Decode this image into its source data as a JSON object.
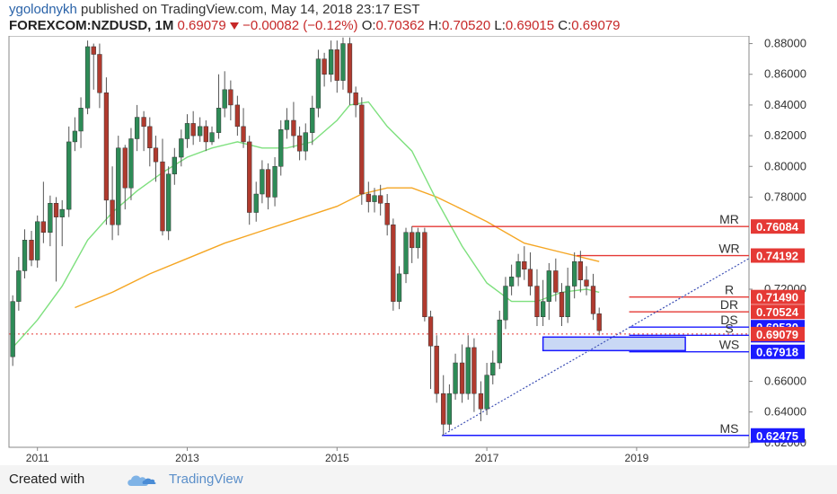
{
  "header": {
    "author": "ygolodnykh",
    "published_text": " published on TradingView.com, May 14, 2018 23:17 EST",
    "symbol": "FOREXCOM:NZDUSD, 1M",
    "last": "0.69079",
    "change": "−0.00082 (−0.12%)",
    "o_label": "O:",
    "o_value": "0.70362",
    "h_label": "H:",
    "h_value": "0.70520",
    "l_label": "L:",
    "l_value": "0.69015",
    "c_label": "C:",
    "c_value": "0.69079",
    "down_arrow_color": "#c62828"
  },
  "footer": {
    "created_with": "Created with",
    "brand": "TradingView",
    "logo_icon": "tradingview-cloud-icon"
  },
  "colors": {
    "up_candle": "#2e8b57",
    "down_candle": "#b03a2e",
    "wick": "#555555",
    "ma_short": "#7ee07e",
    "ma_long": "#f5a623",
    "resistance": "#e53935",
    "support": "#1a1aff",
    "support_box_fill": "#c9d8f5",
    "trendline": "#3f51b5"
  },
  "chart_data": {
    "type": "candlestick",
    "title": "",
    "y_axis_ticks": [
      "0.88000",
      "0.86000",
      "0.84000",
      "0.82000",
      "0.80000",
      "0.78000",
      "0.72000",
      "0.66000",
      "0.64000",
      "0.62000"
    ],
    "x_axis_ticks": [
      "2011",
      "2013",
      "2015",
      "2017",
      "2019"
    ],
    "ylim": [
      0.617,
      0.885
    ],
    "xlim": [
      2010.62,
      2020.5
    ],
    "candles": [
      {
        "t": 2010.67,
        "o": 0.676,
        "c": 0.712,
        "h": 0.716,
        "l": 0.67
      },
      {
        "t": 2010.75,
        "o": 0.712,
        "c": 0.732,
        "h": 0.741,
        "l": 0.706
      },
      {
        "t": 2010.83,
        "o": 0.732,
        "c": 0.752,
        "h": 0.759,
        "l": 0.727
      },
      {
        "t": 2010.92,
        "o": 0.752,
        "c": 0.739,
        "h": 0.758,
        "l": 0.735
      },
      {
        "t": 2011.0,
        "o": 0.739,
        "c": 0.764,
        "h": 0.768,
        "l": 0.734
      },
      {
        "t": 2011.08,
        "o": 0.764,
        "c": 0.757,
        "h": 0.79,
        "l": 0.75
      },
      {
        "t": 2011.17,
        "o": 0.757,
        "c": 0.776,
        "h": 0.781,
        "l": 0.748
      },
      {
        "t": 2011.25,
        "o": 0.776,
        "c": 0.767,
        "h": 0.78,
        "l": 0.725
      },
      {
        "t": 2011.33,
        "o": 0.767,
        "c": 0.772,
        "h": 0.778,
        "l": 0.748
      },
      {
        "t": 2011.42,
        "o": 0.772,
        "c": 0.816,
        "h": 0.826,
        "l": 0.767
      },
      {
        "t": 2011.5,
        "o": 0.816,
        "c": 0.823,
        "h": 0.832,
        "l": 0.81
      },
      {
        "t": 2011.58,
        "o": 0.823,
        "c": 0.838,
        "h": 0.845,
        "l": 0.812
      },
      {
        "t": 2011.67,
        "o": 0.838,
        "c": 0.878,
        "h": 0.882,
        "l": 0.834
      },
      {
        "t": 2011.75,
        "o": 0.878,
        "c": 0.873,
        "h": 0.88,
        "l": 0.85
      },
      {
        "t": 2011.83,
        "o": 0.873,
        "c": 0.848,
        "h": 0.88,
        "l": 0.838
      },
      {
        "t": 2011.92,
        "o": 0.848,
        "c": 0.778,
        "h": 0.858,
        "l": 0.762
      },
      {
        "t": 2012.0,
        "o": 0.778,
        "c": 0.762,
        "h": 0.8,
        "l": 0.752
      },
      {
        "t": 2012.08,
        "o": 0.762,
        "c": 0.812,
        "h": 0.82,
        "l": 0.755
      },
      {
        "t": 2012.17,
        "o": 0.812,
        "c": 0.786,
        "h": 0.814,
        "l": 0.772
      },
      {
        "t": 2012.25,
        "o": 0.786,
        "c": 0.818,
        "h": 0.825,
        "l": 0.778
      },
      {
        "t": 2012.33,
        "o": 0.818,
        "c": 0.832,
        "h": 0.84,
        "l": 0.81
      },
      {
        "t": 2012.42,
        "o": 0.832,
        "c": 0.826,
        "h": 0.836,
        "l": 0.81
      },
      {
        "t": 2012.5,
        "o": 0.826,
        "c": 0.812,
        "h": 0.832,
        "l": 0.8
      },
      {
        "t": 2012.58,
        "o": 0.812,
        "c": 0.803,
        "h": 0.82,
        "l": 0.79
      },
      {
        "t": 2012.67,
        "o": 0.803,
        "c": 0.758,
        "h": 0.818,
        "l": 0.755
      },
      {
        "t": 2012.75,
        "o": 0.758,
        "c": 0.795,
        "h": 0.8,
        "l": 0.752
      },
      {
        "t": 2012.83,
        "o": 0.795,
        "c": 0.806,
        "h": 0.812,
        "l": 0.788
      },
      {
        "t": 2012.92,
        "o": 0.806,
        "c": 0.818,
        "h": 0.824,
        "l": 0.8
      },
      {
        "t": 2013.0,
        "o": 0.818,
        "c": 0.828,
        "h": 0.834,
        "l": 0.812
      },
      {
        "t": 2013.08,
        "o": 0.828,
        "c": 0.82,
        "h": 0.836,
        "l": 0.814
      },
      {
        "t": 2013.17,
        "o": 0.82,
        "c": 0.826,
        "h": 0.832,
        "l": 0.816
      },
      {
        "t": 2013.25,
        "o": 0.826,
        "c": 0.816,
        "h": 0.83,
        "l": 0.81
      },
      {
        "t": 2013.33,
        "o": 0.816,
        "c": 0.822,
        "h": 0.826,
        "l": 0.814
      },
      {
        "t": 2013.42,
        "o": 0.822,
        "c": 0.838,
        "h": 0.86,
        "l": 0.818
      },
      {
        "t": 2013.5,
        "o": 0.838,
        "c": 0.85,
        "h": 0.862,
        "l": 0.832
      },
      {
        "t": 2013.58,
        "o": 0.85,
        "c": 0.84,
        "h": 0.856,
        "l": 0.83
      },
      {
        "t": 2013.67,
        "o": 0.84,
        "c": 0.826,
        "h": 0.846,
        "l": 0.82
      },
      {
        "t": 2013.75,
        "o": 0.826,
        "c": 0.816,
        "h": 0.838,
        "l": 0.812
      },
      {
        "t": 2013.83,
        "o": 0.816,
        "c": 0.77,
        "h": 0.82,
        "l": 0.762
      },
      {
        "t": 2013.92,
        "o": 0.77,
        "c": 0.782,
        "h": 0.79,
        "l": 0.764
      },
      {
        "t": 2014.0,
        "o": 0.782,
        "c": 0.798,
        "h": 0.804,
        "l": 0.776
      },
      {
        "t": 2014.08,
        "o": 0.798,
        "c": 0.78,
        "h": 0.802,
        "l": 0.772
      },
      {
        "t": 2014.17,
        "o": 0.78,
        "c": 0.8,
        "h": 0.806,
        "l": 0.774
      },
      {
        "t": 2014.25,
        "o": 0.8,
        "c": 0.824,
        "h": 0.83,
        "l": 0.794
      },
      {
        "t": 2014.33,
        "o": 0.824,
        "c": 0.83,
        "h": 0.838,
        "l": 0.818
      },
      {
        "t": 2014.42,
        "o": 0.83,
        "c": 0.82,
        "h": 0.842,
        "l": 0.812
      },
      {
        "t": 2014.5,
        "o": 0.82,
        "c": 0.81,
        "h": 0.826,
        "l": 0.804
      },
      {
        "t": 2014.58,
        "o": 0.81,
        "c": 0.822,
        "h": 0.828,
        "l": 0.804
      },
      {
        "t": 2014.67,
        "o": 0.822,
        "c": 0.838,
        "h": 0.846,
        "l": 0.814
      },
      {
        "t": 2014.75,
        "o": 0.838,
        "c": 0.87,
        "h": 0.876,
        "l": 0.832
      },
      {
        "t": 2014.83,
        "o": 0.87,
        "c": 0.86,
        "h": 0.874,
        "l": 0.852
      },
      {
        "t": 2014.92,
        "o": 0.86,
        "c": 0.876,
        "h": 0.882,
        "l": 0.855
      },
      {
        "t": 2015.0,
        "o": 0.876,
        "c": 0.856,
        "h": 0.882,
        "l": 0.848
      },
      {
        "t": 2015.08,
        "o": 0.856,
        "c": 0.88,
        "h": 0.884,
        "l": 0.85
      },
      {
        "t": 2015.17,
        "o": 0.88,
        "c": 0.848,
        "h": 0.884,
        "l": 0.84
      },
      {
        "t": 2015.25,
        "o": 0.848,
        "c": 0.84,
        "h": 0.852,
        "l": 0.832
      },
      {
        "t": 2015.33,
        "o": 0.84,
        "c": 0.782,
        "h": 0.845,
        "l": 0.775
      },
      {
        "t": 2015.42,
        "o": 0.782,
        "c": 0.777,
        "h": 0.79,
        "l": 0.77
      },
      {
        "t": 2015.5,
        "o": 0.777,
        "c": 0.781,
        "h": 0.786,
        "l": 0.77
      },
      {
        "t": 2015.58,
        "o": 0.781,
        "c": 0.776,
        "h": 0.788,
        "l": 0.768
      },
      {
        "t": 2015.67,
        "o": 0.776,
        "c": 0.762,
        "h": 0.782,
        "l": 0.755
      },
      {
        "t": 2015.75,
        "o": 0.762,
        "c": 0.712,
        "h": 0.766,
        "l": 0.706
      },
      {
        "t": 2015.83,
        "o": 0.712,
        "c": 0.73,
        "h": 0.735,
        "l": 0.707
      },
      {
        "t": 2015.92,
        "o": 0.73,
        "c": 0.757,
        "h": 0.76,
        "l": 0.724
      },
      {
        "t": 2016.0,
        "o": 0.757,
        "c": 0.747,
        "h": 0.761,
        "l": 0.737
      },
      {
        "t": 2016.08,
        "o": 0.747,
        "c": 0.757,
        "h": 0.76,
        "l": 0.74
      },
      {
        "t": 2016.17,
        "o": 0.757,
        "c": 0.702,
        "h": 0.76,
        "l": 0.699
      },
      {
        "t": 2016.25,
        "o": 0.702,
        "c": 0.683,
        "h": 0.706,
        "l": 0.655
      },
      {
        "t": 2016.33,
        "o": 0.683,
        "c": 0.652,
        "h": 0.69,
        "l": 0.646
      },
      {
        "t": 2016.42,
        "o": 0.652,
        "c": 0.632,
        "h": 0.664,
        "l": 0.625
      },
      {
        "t": 2016.5,
        "o": 0.632,
        "c": 0.652,
        "h": 0.658,
        "l": 0.628
      },
      {
        "t": 2016.58,
        "o": 0.652,
        "c": 0.672,
        "h": 0.678,
        "l": 0.648
      },
      {
        "t": 2016.67,
        "o": 0.672,
        "c": 0.652,
        "h": 0.684,
        "l": 0.646
      },
      {
        "t": 2016.75,
        "o": 0.652,
        "c": 0.682,
        "h": 0.69,
        "l": 0.648
      },
      {
        "t": 2016.83,
        "o": 0.682,
        "c": 0.652,
        "h": 0.688,
        "l": 0.64
      },
      {
        "t": 2016.92,
        "o": 0.652,
        "c": 0.642,
        "h": 0.66,
        "l": 0.634
      },
      {
        "t": 2017.0,
        "o": 0.642,
        "c": 0.664,
        "h": 0.672,
        "l": 0.638
      },
      {
        "t": 2017.08,
        "o": 0.664,
        "c": 0.672,
        "h": 0.68,
        "l": 0.658
      },
      {
        "t": 2017.17,
        "o": 0.672,
        "c": 0.7,
        "h": 0.706,
        "l": 0.668
      },
      {
        "t": 2017.25,
        "o": 0.7,
        "c": 0.722,
        "h": 0.728,
        "l": 0.694
      },
      {
        "t": 2017.33,
        "o": 0.722,
        "c": 0.728,
        "h": 0.736,
        "l": 0.716
      },
      {
        "t": 2017.42,
        "o": 0.728,
        "c": 0.738,
        "h": 0.743,
        "l": 0.722
      },
      {
        "t": 2017.5,
        "o": 0.738,
        "c": 0.733,
        "h": 0.748,
        "l": 0.726
      },
      {
        "t": 2017.58,
        "o": 0.733,
        "c": 0.722,
        "h": 0.744,
        "l": 0.716
      },
      {
        "t": 2017.67,
        "o": 0.722,
        "c": 0.702,
        "h": 0.733,
        "l": 0.696
      },
      {
        "t": 2017.75,
        "o": 0.702,
        "c": 0.712,
        "h": 0.726,
        "l": 0.696
      },
      {
        "t": 2017.83,
        "o": 0.712,
        "c": 0.732,
        "h": 0.737,
        "l": 0.7
      },
      {
        "t": 2017.92,
        "o": 0.732,
        "c": 0.718,
        "h": 0.74,
        "l": 0.712
      },
      {
        "t": 2018.0,
        "o": 0.718,
        "c": 0.702,
        "h": 0.724,
        "l": 0.696
      },
      {
        "t": 2018.08,
        "o": 0.702,
        "c": 0.722,
        "h": 0.734,
        "l": 0.698
      },
      {
        "t": 2018.17,
        "o": 0.722,
        "c": 0.738,
        "h": 0.744,
        "l": 0.714
      },
      {
        "t": 2018.25,
        "o": 0.738,
        "c": 0.726,
        "h": 0.745,
        "l": 0.718
      },
      {
        "t": 2018.33,
        "o": 0.726,
        "c": 0.722,
        "h": 0.735,
        "l": 0.716
      },
      {
        "t": 2018.42,
        "o": 0.722,
        "c": 0.704,
        "h": 0.73,
        "l": 0.7
      },
      {
        "t": 2018.5,
        "o": 0.704,
        "c": 0.693,
        "h": 0.708,
        "l": 0.69
      }
    ],
    "ma_short": [
      [
        2010.67,
        0.682
      ],
      [
        2011.0,
        0.7
      ],
      [
        2011.33,
        0.722
      ],
      [
        2011.67,
        0.752
      ],
      [
        2012.0,
        0.77
      ],
      [
        2012.33,
        0.784
      ],
      [
        2012.67,
        0.796
      ],
      [
        2013.0,
        0.806
      ],
      [
        2013.33,
        0.812
      ],
      [
        2013.67,
        0.816
      ],
      [
        2014.0,
        0.812
      ],
      [
        2014.33,
        0.812
      ],
      [
        2014.67,
        0.816
      ],
      [
        2015.0,
        0.83
      ],
      [
        2015.17,
        0.84
      ],
      [
        2015.42,
        0.842
      ],
      [
        2015.67,
        0.826
      ],
      [
        2016.0,
        0.81
      ],
      [
        2016.33,
        0.778
      ],
      [
        2016.67,
        0.748
      ],
      [
        2017.0,
        0.724
      ],
      [
        2017.33,
        0.712
      ],
      [
        2017.67,
        0.712
      ],
      [
        2018.0,
        0.718
      ],
      [
        2018.33,
        0.72
      ],
      [
        2018.5,
        0.718
      ]
    ],
    "ma_long": [
      [
        2011.5,
        0.708
      ],
      [
        2012.0,
        0.718
      ],
      [
        2012.5,
        0.73
      ],
      [
        2013.0,
        0.74
      ],
      [
        2013.5,
        0.75
      ],
      [
        2014.0,
        0.758
      ],
      [
        2014.5,
        0.766
      ],
      [
        2015.0,
        0.774
      ],
      [
        2015.33,
        0.782
      ],
      [
        2015.67,
        0.786
      ],
      [
        2016.0,
        0.786
      ],
      [
        2016.33,
        0.78
      ],
      [
        2016.67,
        0.772
      ],
      [
        2017.0,
        0.764
      ],
      [
        2017.5,
        0.75
      ],
      [
        2018.0,
        0.744
      ],
      [
        2018.5,
        0.738
      ]
    ],
    "levels": [
      {
        "name": "MR",
        "value": 0.76084,
        "type": "resistance",
        "x_start": 2016.0
      },
      {
        "name": "WR",
        "value": 0.74192,
        "type": "resistance",
        "x_start": 2018.2
      },
      {
        "name": "R",
        "value": 0.7149,
        "type": "resistance",
        "x_start": 2018.9
      },
      {
        "name": "DR",
        "value": 0.70524,
        "type": "resistance",
        "x_start": 2018.9
      },
      {
        "name": "DS",
        "value": 0.6953,
        "type": "support",
        "x_start": 2018.9
      },
      {
        "name": "S",
        "value": 0.68998,
        "type": "support",
        "x_start": 2018.9
      },
      {
        "name": "WS",
        "value": 0.67918,
        "type": "support",
        "x_start": 2018.9
      },
      {
        "name": "MS",
        "value": 0.62475,
        "type": "support",
        "x_start": 2016.4
      }
    ],
    "current_price": {
      "label": "0.69079",
      "value": 0.69079
    },
    "support_zone": {
      "x0": 2017.75,
      "x1": 2019.65,
      "y_low": 0.68,
      "y_high": 0.6888
    },
    "trendline": {
      "x0": 2016.4,
      "y0": 0.6247,
      "x1": 2020.5,
      "y1": 0.74
    }
  }
}
